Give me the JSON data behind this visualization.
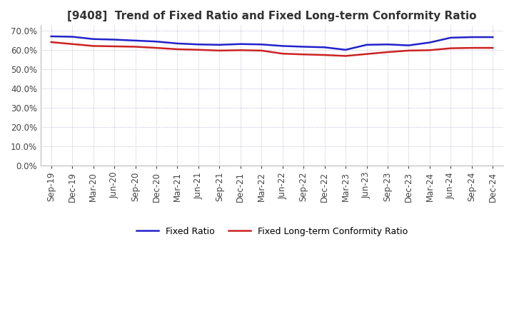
{
  "title": "[9408]  Trend of Fixed Ratio and Fixed Long-term Conformity Ratio",
  "x_labels": [
    "Sep-19",
    "Dec-19",
    "Mar-20",
    "Jun-20",
    "Sep-20",
    "Dec-20",
    "Mar-21",
    "Jun-21",
    "Sep-21",
    "Dec-21",
    "Mar-22",
    "Jun-22",
    "Sep-22",
    "Dec-22",
    "Mar-23",
    "Jun-23",
    "Sep-23",
    "Dec-23",
    "Mar-24",
    "Jun-24",
    "Sep-24",
    "Dec-24"
  ],
  "fixed_ratio": [
    0.672,
    0.67,
    0.658,
    0.655,
    0.65,
    0.645,
    0.635,
    0.63,
    0.628,
    0.632,
    0.63,
    0.622,
    0.618,
    0.615,
    0.602,
    0.628,
    0.63,
    0.625,
    0.64,
    0.665,
    0.668,
    0.668
  ],
  "fixed_lt_ratio": [
    0.642,
    0.632,
    0.622,
    0.62,
    0.618,
    0.612,
    0.605,
    0.602,
    0.598,
    0.6,
    0.598,
    0.582,
    0.578,
    0.575,
    0.57,
    0.58,
    0.59,
    0.598,
    0.6,
    0.61,
    0.612,
    0.612
  ],
  "fixed_ratio_color": "#2222cc",
  "fixed_lt_ratio_color": "#cc2222",
  "background_color": "#ffffff",
  "grid_color": "#aaaacc",
  "ylim": [
    0.0,
    0.73
  ],
  "yticks": [
    0.0,
    0.1,
    0.2,
    0.3,
    0.4,
    0.5,
    0.6,
    0.7
  ],
  "legend_fixed_ratio": "Fixed Ratio",
  "legend_fixed_lt_ratio": "Fixed Long-term Conformity Ratio",
  "title_fontsize": 11,
  "tick_fontsize": 8.5
}
